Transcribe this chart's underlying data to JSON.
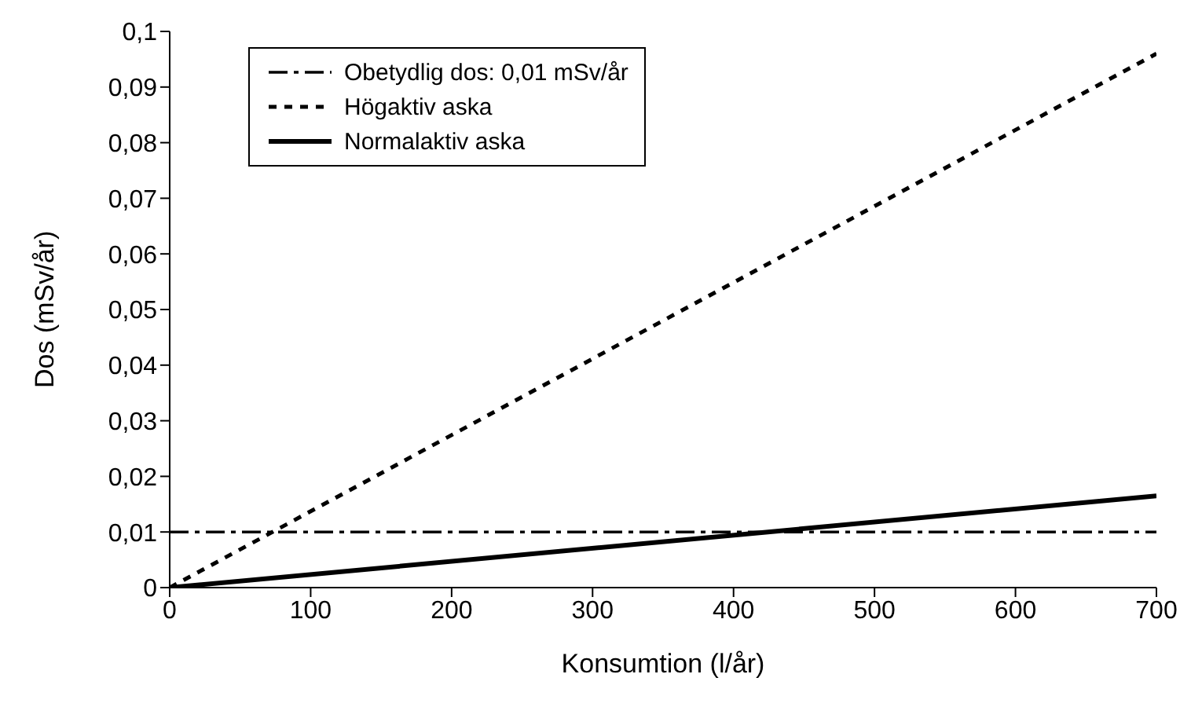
{
  "chart_data": {
    "type": "line",
    "xlabel": "Konsumtion (l/år)",
    "ylabel": "Dos (mSv/år)",
    "x": [
      0,
      700
    ],
    "xlim": [
      0,
      700
    ],
    "xticks": [
      0,
      100,
      200,
      300,
      400,
      500,
      600,
      700
    ],
    "ylim": [
      0,
      0.1
    ],
    "yticks": [
      0,
      {
        "value": 0.01,
        "label": "0,01"
      },
      {
        "value": 0.02,
        "label": "0,02"
      },
      {
        "value": 0.03,
        "label": "0,03"
      },
      {
        "value": 0.04,
        "label": "0,04"
      },
      {
        "value": 0.05,
        "label": "0,05"
      },
      {
        "value": 0.06,
        "label": "0,06"
      },
      {
        "value": 0.07,
        "label": "0,07"
      },
      {
        "value": 0.08,
        "label": "0,08"
      },
      {
        "value": 0.09,
        "label": "0,09"
      },
      {
        "value": 0.1,
        "label": "0,1"
      }
    ],
    "grid": false,
    "legend": "top left",
    "marker": "none",
    "ref_lines": [
      {
        "axis": "y",
        "value": 0.01,
        "label": "Obetydlig dos: 0,01 mSv/år",
        "color": "#000000",
        "line_style": "dashdot"
      }
    ],
    "series": [
      {
        "name": "Högaktiv aska",
        "color": "#000000",
        "line_style": "dashed",
        "values": [
          0,
          0.096
        ]
      },
      {
        "name": "Normalaktiv aska",
        "color": "#000000",
        "line_style": "solid",
        "values": [
          0,
          0.0165
        ]
      }
    ]
  }
}
